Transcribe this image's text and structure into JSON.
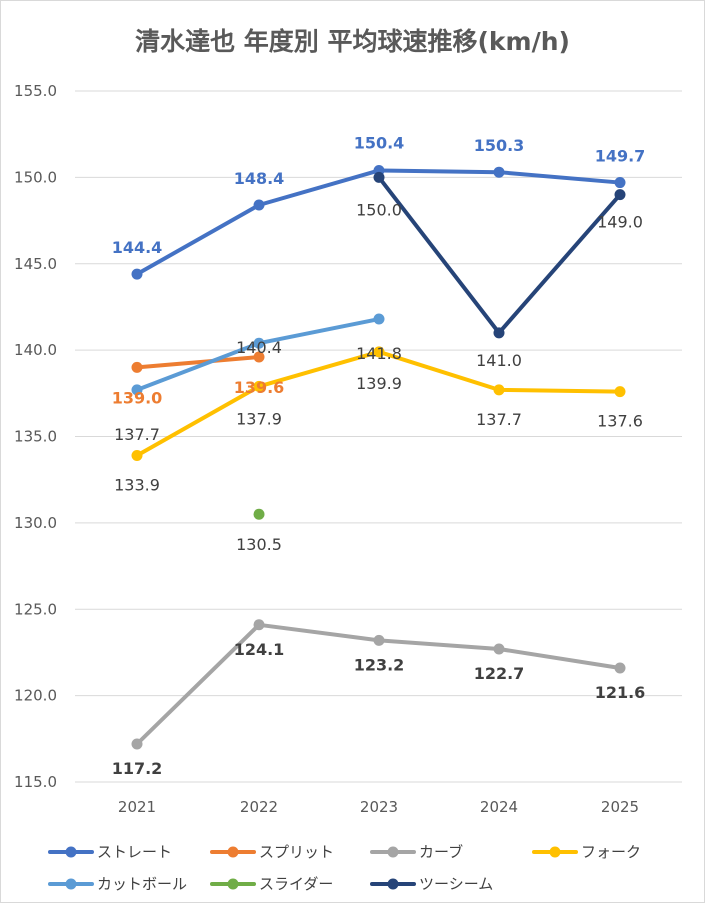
{
  "chart_data": {
    "type": "line",
    "title": "清水達也 年度別 平均球速推移(km/h)",
    "xlabel": "",
    "ylabel": "",
    "categories": [
      "2021",
      "2022",
      "2023",
      "2024",
      "2025"
    ],
    "ylim": [
      115.0,
      155.0
    ],
    "yticks": [
      "115.0",
      "120.0",
      "125.0",
      "130.0",
      "135.0",
      "140.0",
      "145.0",
      "150.0",
      "155.0"
    ],
    "grid": true,
    "legend_position": "bottom",
    "series": [
      {
        "name": "ストレート",
        "color": "#4472c4",
        "values": [
          144.4,
          148.4,
          150.4,
          150.3,
          149.7
        ],
        "labels": [
          "144.4",
          "148.4",
          "150.4",
          "150.3",
          "149.7"
        ],
        "label_pos": "above",
        "bold": true
      },
      {
        "name": "スプリット",
        "color": "#ed7d31",
        "values": [
          139.0,
          139.6,
          null,
          null,
          null
        ],
        "labels": [
          "139.0",
          "139.6",
          "",
          "",
          ""
        ],
        "label_pos": "below",
        "bold": true
      },
      {
        "name": "カーブ",
        "color": "#a5a5a5",
        "values": [
          117.2,
          124.1,
          123.2,
          122.7,
          121.6
        ],
        "labels": [
          "117.2",
          "124.1",
          "123.2",
          "122.7",
          "121.6"
        ],
        "label_pos": "below",
        "bold": true,
        "label_color": "#404040"
      },
      {
        "name": "フォーク",
        "color": "#ffc000",
        "values": [
          133.9,
          137.9,
          139.9,
          137.7,
          137.6
        ],
        "labels": [
          "133.9",
          "137.9",
          "139.9",
          "137.7",
          "137.6"
        ],
        "label_pos": "below",
        "bold": false,
        "label_color": "#404040"
      },
      {
        "name": "カットボール",
        "color": "#5b9bd5",
        "values": [
          137.7,
          140.4,
          141.8,
          null,
          null
        ],
        "labels": [
          "137.7",
          "140.4",
          "141.8",
          "",
          ""
        ],
        "label_pos": "below",
        "bold": false,
        "label_color": "#404040"
      },
      {
        "name": "スライダー",
        "color": "#70ad47",
        "values": [
          null,
          130.5,
          null,
          null,
          null
        ],
        "labels": [
          "",
          "130.5",
          "",
          "",
          ""
        ],
        "label_pos": "below",
        "bold": false,
        "label_color": "#404040"
      },
      {
        "name": "ツーシーム",
        "color": "#264478",
        "values": [
          null,
          null,
          150.0,
          141.0,
          149.0
        ],
        "labels": [
          "",
          "",
          "150.0",
          "141.0",
          "149.0"
        ],
        "label_pos": "below",
        "bold": false,
        "label_color": "#404040"
      }
    ]
  }
}
